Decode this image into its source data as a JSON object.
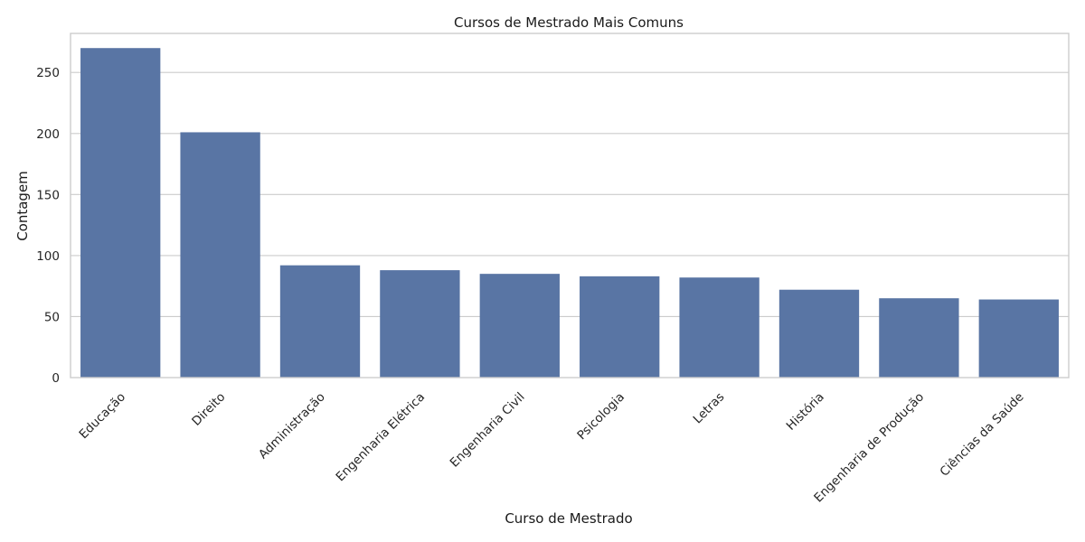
{
  "chart_data": {
    "type": "bar",
    "title": "Cursos de Mestrado Mais Comuns",
    "xlabel": "Curso de Mestrado",
    "ylabel": "Contagem",
    "categories": [
      "Educação",
      "Direito",
      "Administração",
      "Engenharia Elétrica",
      "Engenharia Civil",
      "Psicologia",
      "Letras",
      "História",
      "Engenharia de Produção",
      "Ciências da Saúde"
    ],
    "values": [
      270,
      201,
      92,
      88,
      85,
      83,
      82,
      72,
      65,
      64
    ],
    "ylim": [
      0,
      282
    ],
    "yticks": [
      0,
      50,
      100,
      150,
      200,
      250
    ],
    "grid": true,
    "bar_color": "#5975a4",
    "grid_color": "#cccccc"
  }
}
